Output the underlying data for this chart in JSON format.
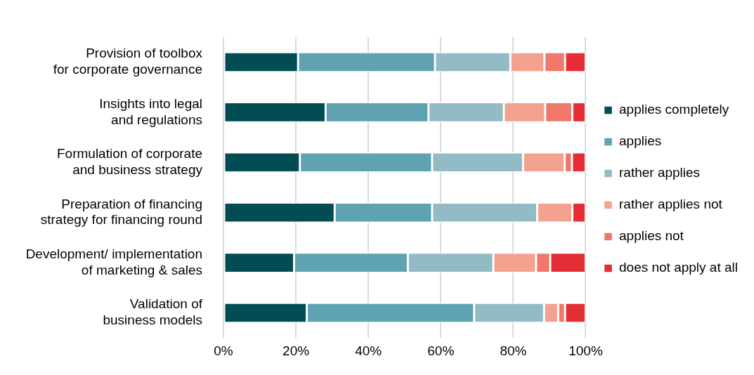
{
  "chart_data": {
    "type": "bar",
    "orientation": "horizontal",
    "stacked": true,
    "categories": [
      "Provision of toolbox\nfor corporate governance",
      "Insights into legal\nand regulations",
      "Formulation of corporate\nand business strategy",
      "Preparation of financing\nstrategy for financing round",
      "Development/ implementation\nof marketing & sales",
      "Validation of\nbusiness models"
    ],
    "series": [
      {
        "name": "applies completely",
        "color": "#024c54",
        "values": [
          20.6,
          28.2,
          21.1,
          30.7,
          19.5,
          23.0
        ]
      },
      {
        "name": "applies",
        "color": "#5fa2b2",
        "values": [
          37.8,
          28.4,
          36.5,
          26.9,
          31.4,
          46.2
        ]
      },
      {
        "name": "rather applies",
        "color": "#93bbc5",
        "values": [
          20.8,
          20.8,
          25.1,
          29.0,
          23.6,
          19.3
        ]
      },
      {
        "name": "rather applies not",
        "color": "#f4a290",
        "values": [
          9.4,
          11.4,
          11.5,
          9.7,
          11.8,
          3.9
        ]
      },
      {
        "name": "applies not",
        "color": "#ef786a",
        "values": [
          5.7,
          7.5,
          2.0,
          0,
          3.9,
          1.9
        ]
      },
      {
        "name": "does not apply at all",
        "color": "#e52d35",
        "values": [
          5.7,
          3.7,
          3.8,
          3.7,
          9.8,
          5.7
        ]
      }
    ],
    "xlim": [
      0,
      100
    ],
    "xticks": [
      {
        "value": 0,
        "label": "0%"
      },
      {
        "value": 20,
        "label": "20%"
      },
      {
        "value": 40,
        "label": "40%"
      },
      {
        "value": 60,
        "label": "60%"
      },
      {
        "value": 80,
        "label": "80%"
      },
      {
        "value": 100,
        "label": "100%"
      }
    ],
    "grid": "x",
    "legend": "right"
  }
}
